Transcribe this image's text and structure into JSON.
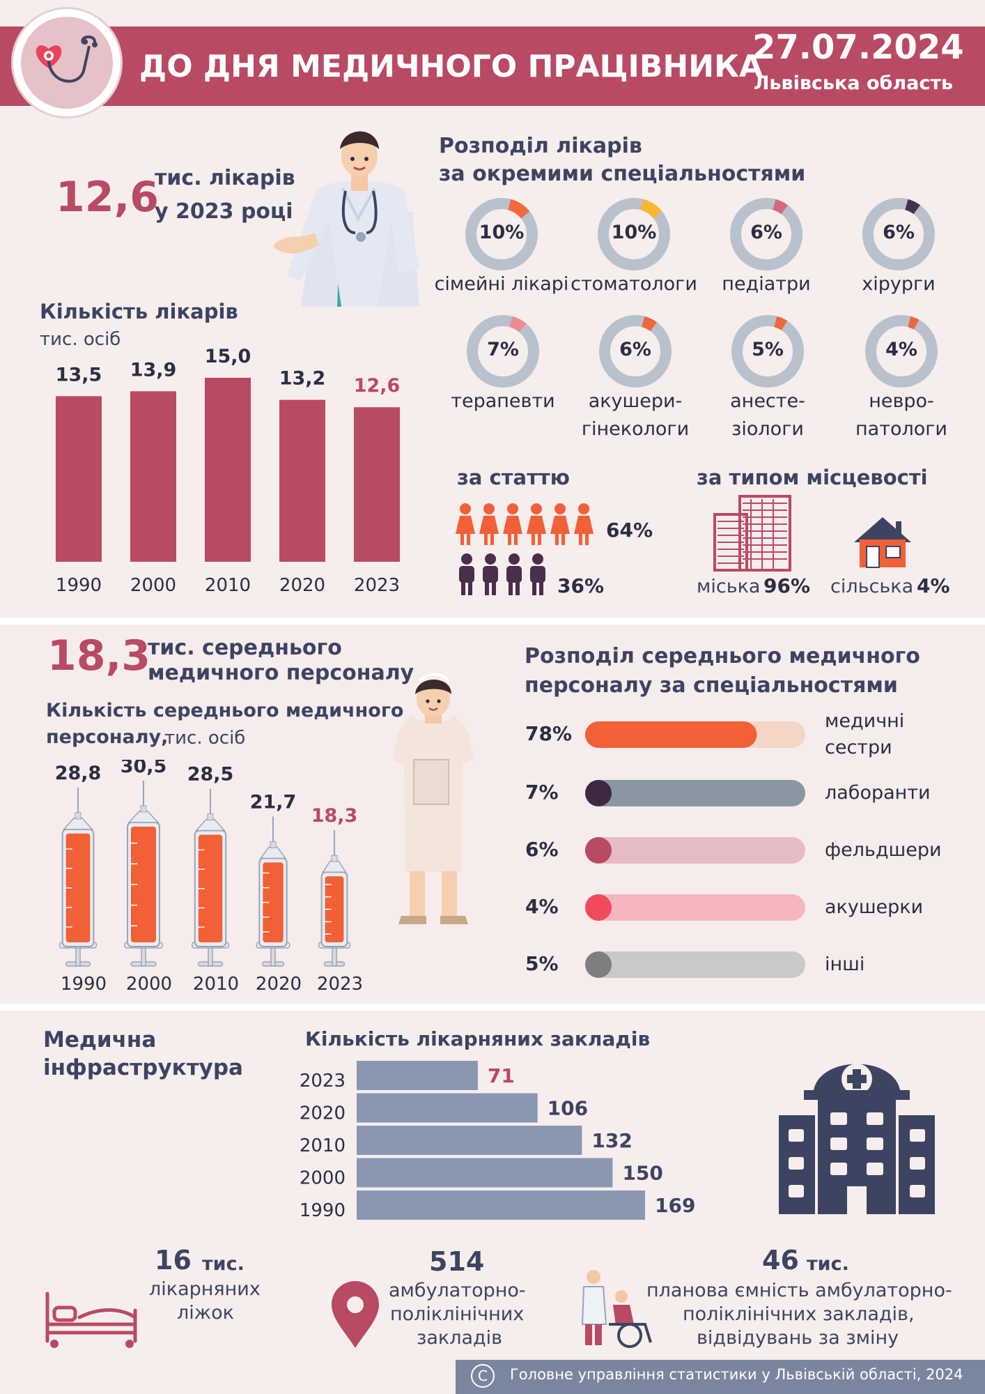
{
  "header": {
    "title": "ДО ДНЯ МЕДИЧНОГО ПРАЦІВНИКА",
    "date": "27.07.2024",
    "region": "Львівська область"
  },
  "doctors": {
    "total_value": "12,6",
    "total_label_1": "тис. лікарів",
    "total_label_2": "у 2023 році",
    "chart_title": "Кількість лікарів",
    "chart_unit": "тис. осіб",
    "spec_title_1": "Розподіл лікарів",
    "spec_title_2": "за окремими спеціальностями",
    "specialties": [
      {
        "pct": "10%",
        "value": 10,
        "label_1": "сімейні лікарі",
        "label_2": "",
        "color": "#f26a3c"
      },
      {
        "pct": "10%",
        "value": 10,
        "label_1": "стоматологи",
        "label_2": "",
        "color": "#f7b733"
      },
      {
        "pct": "6%",
        "value": 6,
        "label_1": "педіатри",
        "label_2": "",
        "color": "#d9687a"
      },
      {
        "pct": "6%",
        "value": 6,
        "label_1": "хірурги",
        "label_2": "",
        "color": "#4a2e4c"
      },
      {
        "pct": "7%",
        "value": 7,
        "label_1": "терапевти",
        "label_2": "",
        "color": "#ee8a93"
      },
      {
        "pct": "6%",
        "value": 6,
        "label_1": "акушери-",
        "label_2": "гінекологи",
        "color": "#f0653a"
      },
      {
        "pct": "5%",
        "value": 5,
        "label_1": "анесте-",
        "label_2": "зіологи",
        "color": "#f0653a"
      },
      {
        "pct": "4%",
        "value": 4,
        "label_1": "невро-",
        "label_2": "патологи",
        "color": "#f0653a"
      }
    ],
    "gender_title": "за статтю",
    "female_pct": "64%",
    "male_pct": "36%",
    "area_title": "за типом місцевості",
    "urban_label": "міська",
    "urban_pct": "96%",
    "rural_label": "сільська",
    "rural_pct": "4%"
  },
  "nurses": {
    "total_value": "18,3",
    "total_label_1": "тис. середнього",
    "total_label_2": "медичного персоналу",
    "chart_title_1": "Кількість середнього медичного",
    "chart_title_2": "персоналу,",
    "chart_unit": "тис. осіб",
    "spec_title_1": "Розподіл середнього медичного",
    "spec_title_2": "персоналу за спеціальностями",
    "specialties": [
      {
        "pct": "78%",
        "value": 78,
        "label_1": "медичні",
        "label_2": "сестри",
        "color": "#f26037",
        "track": "#f3d6c8"
      },
      {
        "pct": "7%",
        "value": 7,
        "label_1": "лаборанти",
        "label_2": "",
        "color": "#3d2a42",
        "track": "#8a97a3"
      },
      {
        "pct": "6%",
        "value": 6,
        "label_1": "фельдшери",
        "label_2": "",
        "color": "#b94a63",
        "track": "#e6bcc4"
      },
      {
        "pct": "4%",
        "value": 4,
        "label_1": "акушерки",
        "label_2": "",
        "color": "#ef4b5b",
        "track": "#f6b6bf"
      },
      {
        "pct": "5%",
        "value": 5,
        "label_1": "інші",
        "label_2": "",
        "color": "#7e7e80",
        "track": "#c9c9c9"
      }
    ]
  },
  "infra": {
    "title_1": "Медична",
    "title_2": "інфраструктура",
    "chart_title": "Кількість лікарняних закладів",
    "beds_value": "16",
    "beds_unit": "тис.",
    "beds_label_1": "лікарняних",
    "beds_label_2": "ліжок",
    "amb_value": "514",
    "amb_label_1": "амбулаторно-",
    "amb_label_2": "поліклінічних",
    "amb_label_3": "закладів",
    "cap_value": "46",
    "cap_unit": "тис.",
    "cap_label_1": "планова ємність амбулаторно-",
    "cap_label_2": "поліклінічних закладів,",
    "cap_label_3": "відвідувань за зміну"
  },
  "footer": {
    "copyright_symbol": "C",
    "text": "Головне управління статистики у Львівській області, 2024"
  },
  "chart_data": [
    {
      "type": "bar",
      "title": "Кількість лікарів",
      "ylabel": "тис. осіб",
      "categories": [
        "1990",
        "2000",
        "2010",
        "2020",
        "2023"
      ],
      "values": [
        13.5,
        13.9,
        15.0,
        13.2,
        12.6
      ],
      "labels": [
        "13,5",
        "13,9",
        "15,0",
        "13,2",
        "12,6"
      ],
      "highlight_last": true,
      "colors": {
        "bar": "#b94a63",
        "label": "#2b2e43",
        "highlight_label": "#b94a63"
      }
    },
    {
      "type": "bar",
      "title": "Кількість середнього медичного персоналу",
      "ylabel": "тис. осіб",
      "categories": [
        "1990",
        "2000",
        "2010",
        "2020",
        "2023"
      ],
      "values": [
        28.8,
        30.5,
        28.5,
        21.7,
        18.3
      ],
      "labels": [
        "28,8",
        "30,5",
        "28,5",
        "21,7",
        "18,3"
      ],
      "highlight_last": true,
      "colors": {
        "fill": "#f26037",
        "label": "#2b2e43",
        "highlight_label": "#b94a63"
      }
    },
    {
      "type": "bar",
      "orientation": "horizontal",
      "title": "Кількість лікарняних закладів",
      "categories": [
        "2023",
        "2020",
        "2010",
        "2000",
        "1990"
      ],
      "values": [
        71,
        106,
        132,
        150,
        169
      ],
      "labels": [
        "71",
        "106",
        "132",
        "150",
        "169"
      ],
      "highlight_first": true,
      "colors": {
        "bar": "#8a97b0",
        "label": "#3c4462",
        "highlight_label": "#b94a63"
      }
    },
    {
      "type": "pie",
      "title": "за статтю",
      "categories": [
        "жінки",
        "чоловіки"
      ],
      "values": [
        64,
        36
      ]
    },
    {
      "type": "pie",
      "title": "за типом місцевості",
      "categories": [
        "міська",
        "сільська"
      ],
      "values": [
        96,
        4
      ]
    }
  ]
}
